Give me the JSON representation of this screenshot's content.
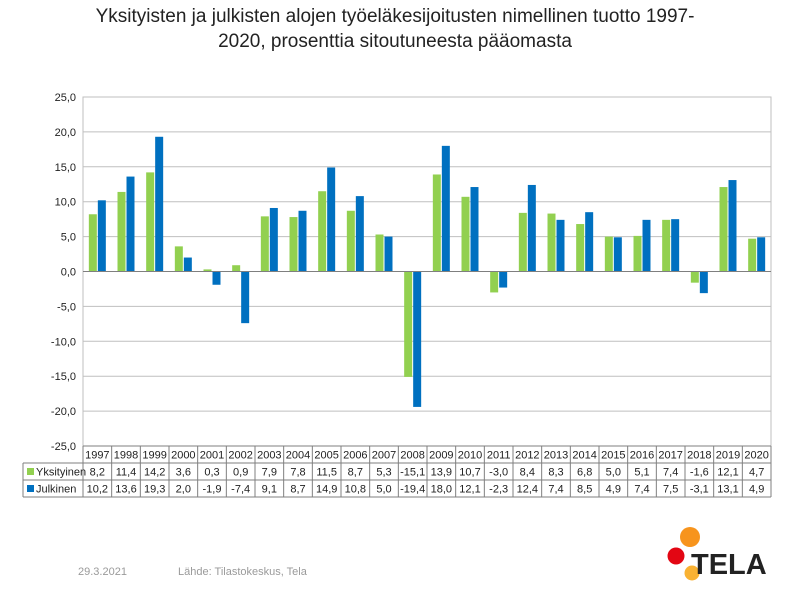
{
  "title_line1": "Yksityisten ja julkisten alojen työeläkesijoitusten nimellinen tuotto 1997-",
  "title_line2": "2020, prosenttia sitoutuneesta pääomasta",
  "footer": {
    "date": "29.3.2021",
    "source": "Lähde: Tilastokeskus, Tela"
  },
  "logo": {
    "text": "TELA",
    "colors": [
      "#f7941d",
      "#e30613",
      "#f9b233"
    ]
  },
  "chart_data": {
    "type": "bar",
    "categories": [
      "1997",
      "1998",
      "1999",
      "2000",
      "2001",
      "2002",
      "2003",
      "2004",
      "2005",
      "2006",
      "2007",
      "2008",
      "2009",
      "2010",
      "2011",
      "2012",
      "2013",
      "2014",
      "2015",
      "2016",
      "2017",
      "2018",
      "2019",
      "2020"
    ],
    "series": [
      {
        "name": "Yksityinen",
        "color": "#92d050",
        "values": [
          8.2,
          11.4,
          14.2,
          3.6,
          0.3,
          0.9,
          7.9,
          7.8,
          11.5,
          8.7,
          5.3,
          -15.1,
          13.9,
          10.7,
          -3.0,
          8.4,
          8.3,
          6.8,
          5.0,
          5.1,
          7.4,
          -1.6,
          12.1,
          4.7
        ],
        "labels": [
          "8,2",
          "11,4",
          "14,2",
          "3,6",
          "0,3",
          "0,9",
          "7,9",
          "7,8",
          "11,5",
          "8,7",
          "5,3",
          "-15,1",
          "13,9",
          "10,7",
          "-3,0",
          "8,4",
          "8,3",
          "6,8",
          "5,0",
          "5,1",
          "7,4",
          "-1,6",
          "12,1",
          "4,7"
        ]
      },
      {
        "name": "Julkinen",
        "color": "#0070c0",
        "values": [
          10.2,
          13.6,
          19.3,
          2.0,
          -1.9,
          -7.4,
          9.1,
          8.7,
          14.9,
          10.8,
          5.0,
          -19.4,
          18.0,
          12.1,
          -2.3,
          12.4,
          7.4,
          8.5,
          4.9,
          7.4,
          7.5,
          -3.1,
          13.1,
          4.9
        ],
        "labels": [
          "10,2",
          "13,6",
          "19,3",
          "2,0",
          "-1,9",
          "-7,4",
          "9,1",
          "8,7",
          "14,9",
          "10,8",
          "5,0",
          "-19,4",
          "18,0",
          "12,1",
          "-2,3",
          "12,4",
          "7,4",
          "8,5",
          "4,9",
          "7,4",
          "7,5",
          "-3,1",
          "13,1",
          "4,9"
        ]
      }
    ],
    "ylim": [
      -25,
      25
    ],
    "yticks": [
      "25,0",
      "20,0",
      "15,0",
      "10,0",
      "5,0",
      "0,0",
      "-5,0",
      "-10,0",
      "-15,0",
      "-20,0",
      "-25,0"
    ],
    "grid": true,
    "legend": "data-table"
  }
}
